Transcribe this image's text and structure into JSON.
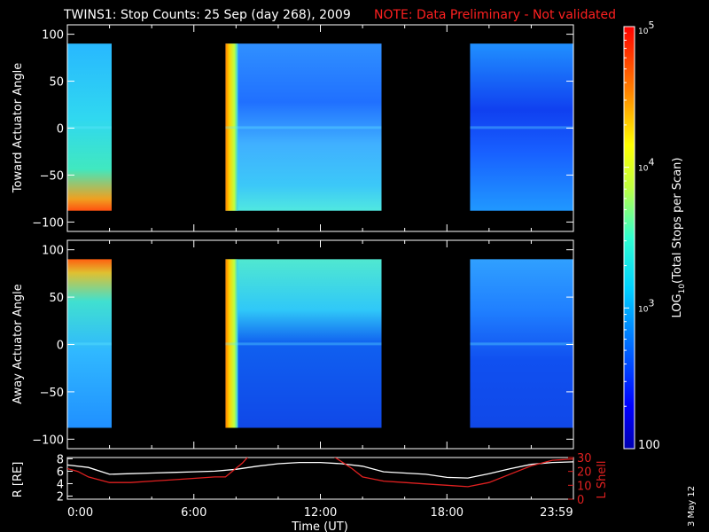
{
  "title": "TWINS1: Stop Counts: 25 Sep (day 268), 2009",
  "note": "NOTE: Data Preliminary - Not validated",
  "stamp": "3 May 12",
  "colors": {
    "note": "#ff2020",
    "background": "#000000",
    "axes": "#ffffff",
    "r_line": "#ffffff",
    "lshell_line": "#e02020"
  },
  "chart_data": [
    {
      "type": "heatmap",
      "ylabel": "Toward Actuator Angle",
      "ylim": [
        -110,
        110
      ],
      "yticks": [
        100,
        50,
        0,
        -50,
        -100
      ],
      "xlim_hours": [
        0,
        24
      ],
      "data_y_range": [
        -88,
        90
      ],
      "data_blocks_hours": [
        [
          0,
          2.1
        ],
        [
          7.5,
          14.9
        ],
        [
          19.1,
          24
        ]
      ]
    },
    {
      "type": "heatmap",
      "ylabel": "Away Actuator Angle",
      "ylim": [
        -110,
        110
      ],
      "yticks": [
        100,
        50,
        0,
        -50,
        -100
      ],
      "xlim_hours": [
        0,
        24
      ],
      "data_y_range": [
        -88,
        90
      ],
      "data_blocks_hours": [
        [
          0,
          2.1
        ],
        [
          7.5,
          14.9
        ],
        [
          19.1,
          24
        ]
      ]
    },
    {
      "type": "line",
      "ylabel": "R [RE]",
      "ylabel_right": "L Shell",
      "xlabel": "Time (UT)",
      "xticks_hours": [
        0,
        6,
        12,
        18,
        23.983
      ],
      "xtick_labels": [
        "0:00",
        "6:00",
        "12:00",
        "18:00",
        "23:59"
      ],
      "ylim_left": [
        1.5,
        8.2
      ],
      "yticks_left": [
        2,
        4,
        6,
        8
      ],
      "ylim_right": [
        0,
        30
      ],
      "yticks_right": [
        0,
        10,
        20,
        30
      ],
      "series": [
        {
          "axis": "left",
          "x": [
            0,
            1,
            2,
            3,
            4,
            5,
            6,
            7,
            8,
            9,
            10,
            11,
            12,
            13,
            14,
            15,
            16,
            17,
            18,
            19,
            20,
            21,
            22,
            23,
            24
          ],
          "y": [
            7.0,
            6.6,
            5.5,
            5.6,
            5.7,
            5.8,
            5.9,
            6.0,
            6.3,
            6.8,
            7.2,
            7.4,
            7.4,
            7.2,
            6.8,
            5.9,
            5.7,
            5.5,
            5.0,
            4.9,
            5.6,
            6.4,
            7.1,
            7.4,
            7.5
          ]
        },
        {
          "axis": "right",
          "x": [
            0,
            0.5,
            1,
            2,
            3,
            4,
            5,
            6,
            7,
            7.5,
            8.3,
            8.6,
            12.6,
            13.5,
            14.0,
            15.0,
            16,
            17,
            18,
            19,
            20,
            21,
            22,
            23,
            24
          ],
          "y": [
            22,
            20,
            16,
            12,
            12,
            13,
            14,
            15,
            16,
            16,
            26,
            31,
            31,
            22,
            16,
            13,
            12,
            11,
            10,
            9,
            12,
            18,
            24,
            28,
            29
          ]
        }
      ]
    }
  ],
  "colorbar": {
    "label": "LOG10(Total Stops per Scan)",
    "label_main": "LOG",
    "label_sub": "10",
    "label_rest": "(Total Stops per Scan)",
    "scale": "log",
    "range": [
      100,
      100000
    ],
    "ticks": [
      {
        "value": 100000,
        "base": "10",
        "exp": "5"
      },
      {
        "value": 10000,
        "base": "10",
        "exp": "4"
      },
      {
        "value": 1000,
        "base": "10",
        "exp": "3"
      },
      {
        "value": 100,
        "base": "100",
        "exp": ""
      }
    ]
  }
}
